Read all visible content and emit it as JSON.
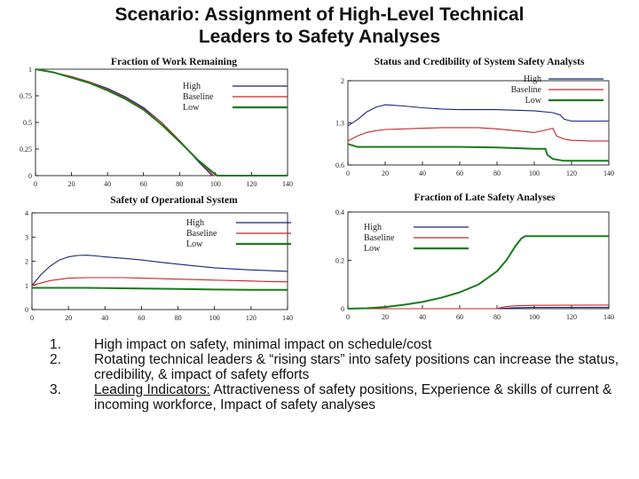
{
  "slide": {
    "title_line1": "Scenario: Assignment of High-Level Technical",
    "title_line2": "Leaders to Safety Analyses"
  },
  "colors": {
    "high": "#1a237e",
    "baseline": "#c62828",
    "low": "#1b7a1b",
    "axis": "#000000"
  },
  "chart_data": [
    {
      "id": "fraction-work-remaining",
      "type": "line",
      "title": "Fraction of Work Remaining",
      "xlim": [
        0,
        140
      ],
      "ylim": [
        0,
        1
      ],
      "xticks": [
        0,
        20,
        40,
        60,
        80,
        100,
        120,
        140
      ],
      "yticks": [
        0,
        0.25,
        0.5,
        0.75,
        1
      ],
      "xtick_labels": [
        "0",
        "20",
        "40",
        "60",
        "80",
        "100",
        "120",
        "140"
      ],
      "ytick_labels": [
        "0",
        "0.25",
        "0.5",
        "0.75",
        "1"
      ],
      "legend": [
        "High",
        "Baseline",
        "Low"
      ],
      "series": [
        {
          "name": "High",
          "x": [
            0,
            10,
            20,
            30,
            40,
            50,
            60,
            70,
            80,
            90,
            98,
            100,
            140
          ],
          "y": [
            1,
            0.97,
            0.93,
            0.88,
            0.82,
            0.74,
            0.64,
            0.5,
            0.33,
            0.14,
            0,
            0,
            0
          ]
        },
        {
          "name": "Baseline",
          "x": [
            0,
            10,
            20,
            30,
            40,
            50,
            60,
            70,
            80,
            90,
            99,
            100,
            140
          ],
          "y": [
            1,
            0.97,
            0.93,
            0.88,
            0.81,
            0.73,
            0.63,
            0.5,
            0.33,
            0.15,
            0,
            0,
            0
          ]
        },
        {
          "name": "Low",
          "x": [
            0,
            10,
            20,
            30,
            40,
            50,
            60,
            70,
            80,
            90,
            100,
            101,
            140
          ],
          "y": [
            1,
            0.97,
            0.92,
            0.87,
            0.8,
            0.72,
            0.62,
            0.48,
            0.32,
            0.15,
            0.01,
            0,
            0
          ]
        }
      ]
    },
    {
      "id": "status-credibility",
      "type": "line",
      "title": "Status and Credibility of System Safety Analysts",
      "xlim": [
        0,
        140
      ],
      "ylim": [
        0.6,
        2
      ],
      "xticks": [
        0,
        20,
        40,
        60,
        80,
        100,
        120,
        140
      ],
      "yticks": [
        0.6,
        1.3,
        2
      ],
      "xtick_labels": [
        "0",
        "20",
        "40",
        "60",
        "80",
        "100",
        "120",
        "140"
      ],
      "ytick_labels": [
        "0.6",
        "1.3",
        "2"
      ],
      "legend": [
        "High",
        "Baseline",
        "Low"
      ],
      "series": [
        {
          "name": "High",
          "x": [
            0,
            5,
            10,
            15,
            20,
            30,
            40,
            50,
            60,
            70,
            80,
            90,
            100,
            110,
            114,
            116,
            120,
            130,
            140
          ],
          "y": [
            1.25,
            1.35,
            1.48,
            1.56,
            1.6,
            1.58,
            1.55,
            1.53,
            1.52,
            1.52,
            1.52,
            1.51,
            1.5,
            1.47,
            1.43,
            1.36,
            1.33,
            1.33,
            1.33
          ]
        },
        {
          "name": "Baseline",
          "x": [
            0,
            5,
            10,
            15,
            20,
            30,
            40,
            50,
            60,
            70,
            80,
            90,
            100,
            106,
            110,
            112,
            116,
            120,
            130,
            140
          ],
          "y": [
            1.0,
            1.08,
            1.14,
            1.17,
            1.19,
            1.2,
            1.21,
            1.22,
            1.22,
            1.22,
            1.2,
            1.17,
            1.14,
            1.18,
            1.21,
            1.08,
            1.03,
            1.01,
            1.0,
            1.0
          ]
        },
        {
          "name": "Low",
          "x": [
            0,
            5,
            10,
            20,
            40,
            60,
            80,
            90,
            100,
            106,
            107,
            110,
            116,
            140
          ],
          "y": [
            0.95,
            0.9,
            0.9,
            0.9,
            0.9,
            0.9,
            0.89,
            0.88,
            0.87,
            0.87,
            0.77,
            0.7,
            0.67,
            0.67
          ]
        }
      ]
    },
    {
      "id": "safety-operational-system",
      "type": "line",
      "title": "Safety of Operational System",
      "xlim": [
        0,
        140
      ],
      "ylim": [
        0,
        4
      ],
      "xticks": [
        0,
        20,
        40,
        60,
        80,
        100,
        120,
        140
      ],
      "yticks": [
        0,
        1,
        2,
        3,
        4
      ],
      "xtick_labels": [
        "0",
        "20",
        "40",
        "60",
        "80",
        "100",
        "120",
        "140"
      ],
      "ytick_labels": [
        "0",
        "1",
        "2",
        "3",
        "4"
      ],
      "legend": [
        "High",
        "Baseline",
        "Low"
      ],
      "series": [
        {
          "name": "High",
          "x": [
            0,
            5,
            10,
            15,
            20,
            25,
            30,
            35,
            40,
            50,
            60,
            70,
            80,
            90,
            100,
            110,
            120,
            130,
            140
          ],
          "y": [
            1.0,
            1.45,
            1.8,
            2.05,
            2.18,
            2.24,
            2.25,
            2.22,
            2.18,
            2.12,
            2.05,
            1.96,
            1.88,
            1.8,
            1.73,
            1.68,
            1.64,
            1.61,
            1.58
          ]
        },
        {
          "name": "Baseline",
          "x": [
            0,
            10,
            20,
            30,
            40,
            50,
            60,
            70,
            80,
            90,
            100,
            110,
            120,
            130,
            140
          ],
          "y": [
            1.0,
            1.2,
            1.3,
            1.32,
            1.32,
            1.32,
            1.3,
            1.28,
            1.26,
            1.24,
            1.22,
            1.2,
            1.18,
            1.16,
            1.15
          ]
        },
        {
          "name": "Low",
          "x": [
            0,
            10,
            20,
            30,
            40,
            60,
            80,
            100,
            120,
            140
          ],
          "y": [
            0.9,
            0.9,
            0.9,
            0.9,
            0.89,
            0.87,
            0.85,
            0.83,
            0.82,
            0.82
          ]
        }
      ]
    },
    {
      "id": "fraction-late-safety-analyses",
      "type": "line",
      "title": "Fraction of Late Safety Analyses",
      "xlim": [
        0,
        140
      ],
      "ylim": [
        0,
        0.4
      ],
      "xticks": [
        0,
        20,
        40,
        60,
        80,
        100,
        120,
        140
      ],
      "yticks": [
        0,
        0.2,
        0.4
      ],
      "xtick_labels": [
        "0",
        "20",
        "40",
        "60",
        "80",
        "100",
        "120",
        "140"
      ],
      "ytick_labels": [
        "0",
        "0.2",
        "0.4"
      ],
      "legend": [
        "High",
        "Baseline",
        "Low"
      ],
      "series": [
        {
          "name": "High",
          "x": [
            0,
            80,
            84,
            90,
            100,
            140
          ],
          "y": [
            0,
            0,
            0.002,
            0.004,
            0.005,
            0.005
          ]
        },
        {
          "name": "Baseline",
          "x": [
            0,
            80,
            84,
            90,
            100,
            140
          ],
          "y": [
            0,
            0,
            0.008,
            0.012,
            0.014,
            0.015
          ]
        },
        {
          "name": "Low",
          "x": [
            0,
            10,
            20,
            30,
            40,
            50,
            60,
            70,
            80,
            85,
            90,
            93,
            95,
            140
          ],
          "y": [
            0,
            0.002,
            0.007,
            0.016,
            0.028,
            0.045,
            0.068,
            0.1,
            0.155,
            0.2,
            0.26,
            0.29,
            0.3,
            0.3
          ]
        }
      ]
    }
  ],
  "notes": [
    {
      "num": "1.",
      "text": "High impact on safety, minimal impact on schedule/cost"
    },
    {
      "num": "2.",
      "text": "Rotating technical leaders & “rising stars” into safety positions can increase the status, credibility, & impact of safety efforts"
    },
    {
      "num": "3.",
      "lead": "Leading Indicators:",
      "text": " Attractiveness of safety positions, Experience & skills of current & incoming workforce, Impact of safety analyses"
    }
  ]
}
